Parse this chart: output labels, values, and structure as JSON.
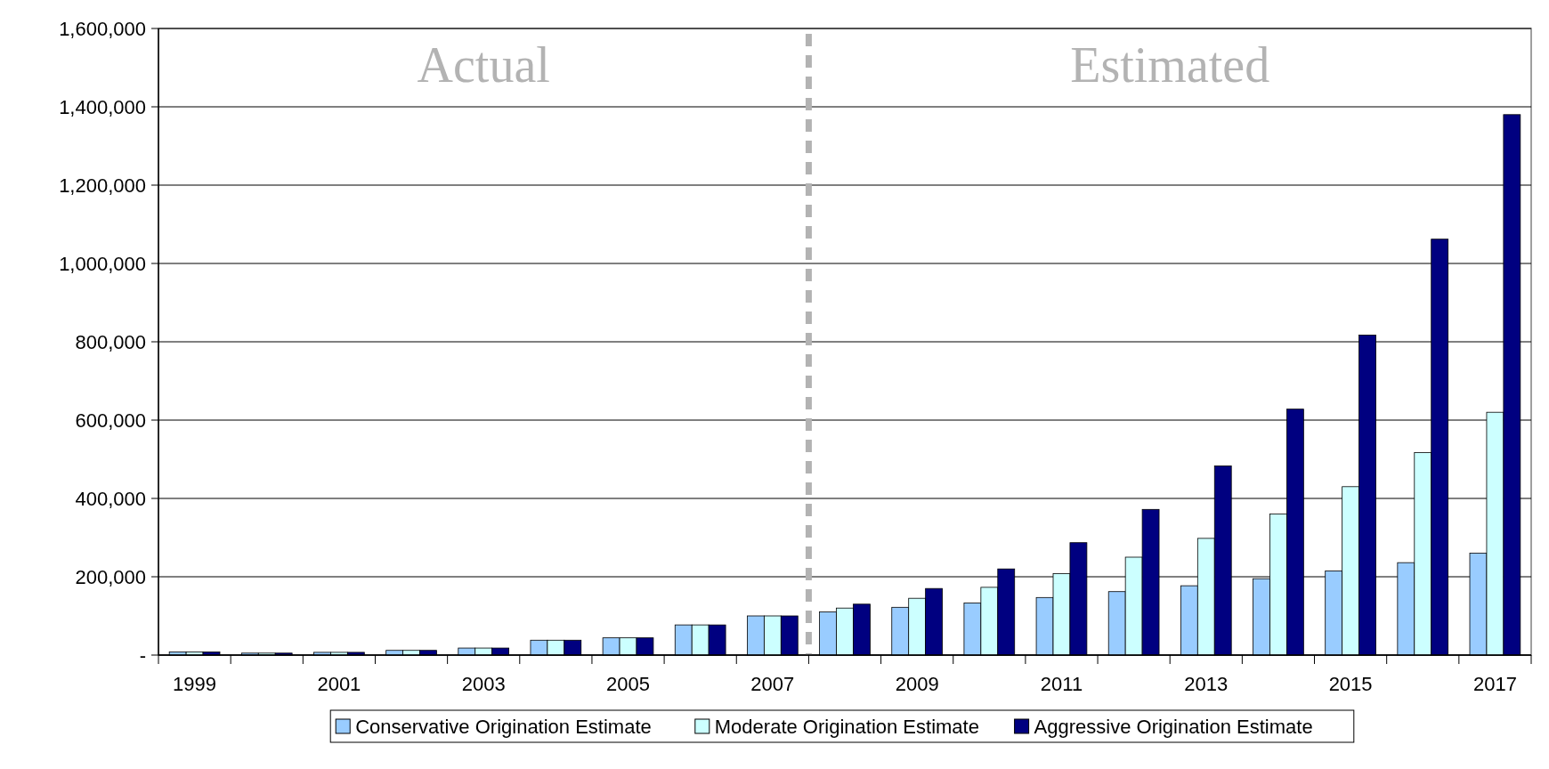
{
  "chart_data": {
    "type": "bar",
    "x": [
      1999,
      2000,
      2001,
      2002,
      2003,
      2004,
      2005,
      2006,
      2007,
      2008,
      2009,
      2010,
      2011,
      2012,
      2013,
      2014,
      2015,
      2016,
      2017
    ],
    "series": [
      {
        "name": "Conservative Origination Estimate",
        "color": "#99ccff",
        "values": [
          8000,
          5000,
          7000,
          12000,
          18000,
          38000,
          44000,
          77000,
          100000,
          110000,
          122000,
          133000,
          147000,
          162000,
          177000,
          195000,
          215000,
          236000,
          260000
        ]
      },
      {
        "name": "Moderate Origination Estimate",
        "color": "#ccffff",
        "values": [
          8000,
          5000,
          7000,
          12000,
          18000,
          38000,
          44000,
          77000,
          100000,
          120000,
          145000,
          173000,
          208000,
          250000,
          298000,
          360000,
          430000,
          517000,
          620000
        ]
      },
      {
        "name": "Aggressive Origination Estimate",
        "color": "#000080",
        "values": [
          8000,
          5000,
          7000,
          12000,
          18000,
          38000,
          44000,
          77000,
          100000,
          130000,
          170000,
          220000,
          287000,
          372000,
          483000,
          628000,
          817000,
          1062000,
          1380000
        ]
      }
    ],
    "xlim": [
      1998.5,
      2017.5
    ],
    "xticks": [
      1999,
      2001,
      2003,
      2005,
      2007,
      2009,
      2011,
      2013,
      2015,
      2017
    ],
    "ylim": [
      0,
      1600000
    ],
    "yticks": [
      {
        "value": 0,
        "label": "-"
      },
      {
        "value": 200000,
        "label": "200,000"
      },
      {
        "value": 400000,
        "label": "400,000"
      },
      {
        "value": 600000,
        "label": "600,000"
      },
      {
        "value": 800000,
        "label": "800,000"
      },
      {
        "value": 1000000,
        "label": "1,000,000"
      },
      {
        "value": 1200000,
        "label": "1,200,000"
      },
      {
        "value": 1400000,
        "label": "1,400,000"
      },
      {
        "value": 1600000,
        "label": "1,600,000"
      }
    ],
    "grid": "y",
    "legend": "bottom",
    "ref_lines": [
      {
        "axis": "x",
        "value": 2007.5,
        "color": "#b3b3b3",
        "line_style": "dashed"
      }
    ],
    "annotations": [
      "Actual",
      "Estimated"
    ]
  }
}
